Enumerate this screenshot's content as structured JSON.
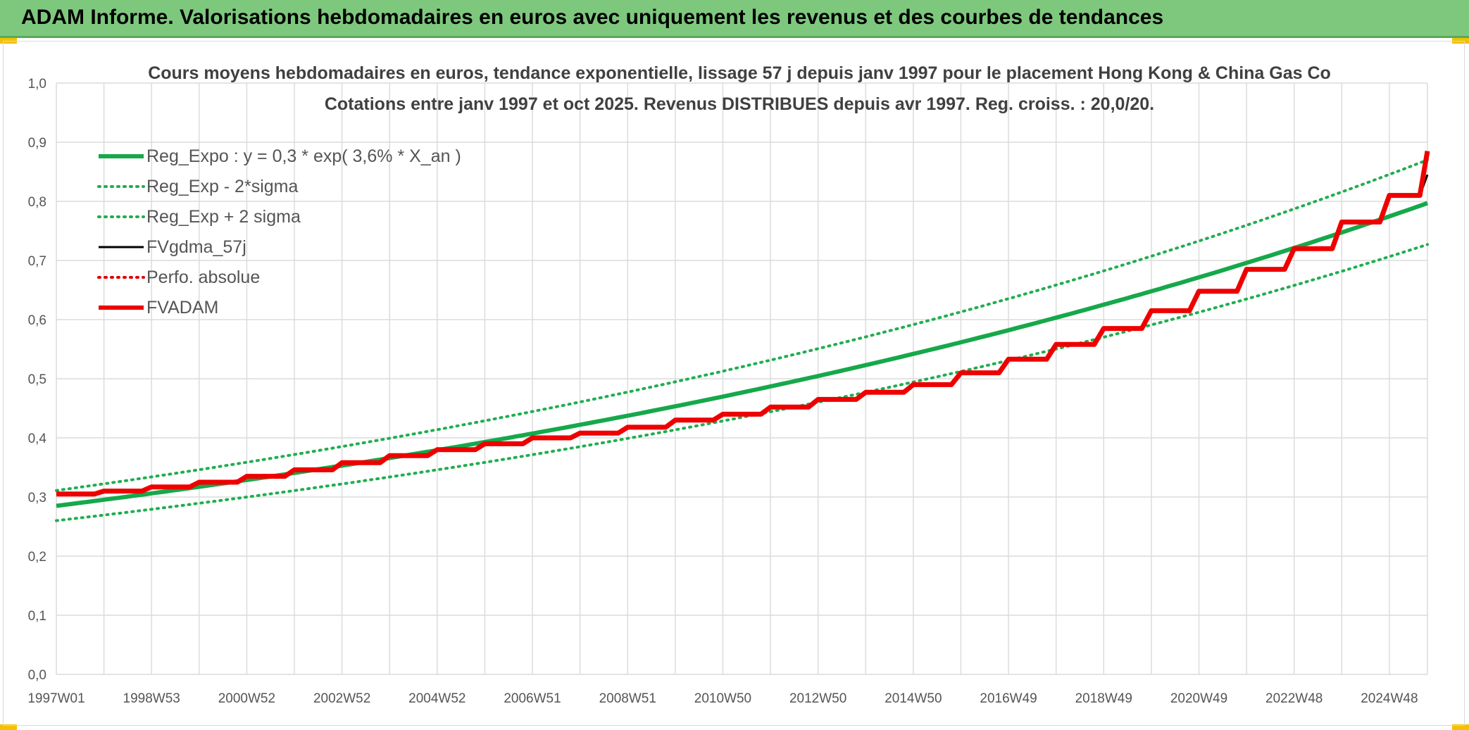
{
  "banner": {
    "title": "ADAM Informe. Valorisations hebdomadaires en euros avec uniquement les revenus et des courbes de tendances"
  },
  "colors": {
    "banner_bg": "#7ec87e",
    "accent": "#f2c200",
    "reg_green": "#16a84a",
    "band_green": "#1fae4f",
    "fv_black": "#000000",
    "perf_red": "#e00000",
    "adam_red": "#ee0000",
    "grid": "#dcdcdc"
  },
  "chart_data": {
    "type": "line",
    "title_line1": "Cours moyens hebdomadaires en euros, tendance exponentielle, lissage 57 j depuis janv 1997 pour le placement Hong Kong & China Gas Co",
    "title_line2": "Cotations entre janv 1997 et oct 2025. Revenus DISTRIBUES depuis avr 1997. Reg. croiss. : 20,0/20.",
    "xlabel": "",
    "ylabel": "",
    "ylim": [
      0,
      1.0
    ],
    "xlim": [
      1997.0,
      2025.8
    ],
    "y_ticks": [
      "0,0",
      "0,1",
      "0,2",
      "0,3",
      "0,4",
      "0,5",
      "0,6",
      "0,7",
      "0,8",
      "0,9",
      "1,0"
    ],
    "x_ticks": [
      {
        "label": "1997W01",
        "x": 1997.0
      },
      {
        "label": "1998W53",
        "x": 1999.0
      },
      {
        "label": "2000W52",
        "x": 2001.0
      },
      {
        "label": "2002W52",
        "x": 2003.0
      },
      {
        "label": "2004W52",
        "x": 2005.0
      },
      {
        "label": "2006W51",
        "x": 2007.0
      },
      {
        "label": "2008W51",
        "x": 2009.0
      },
      {
        "label": "2010W50",
        "x": 2011.0
      },
      {
        "label": "2012W50",
        "x": 2013.0
      },
      {
        "label": "2014W50",
        "x": 2015.0
      },
      {
        "label": "2016W49",
        "x": 2017.0
      },
      {
        "label": "2018W49",
        "x": 2019.0
      },
      {
        "label": "2020W49",
        "x": 2021.0
      },
      {
        "label": "2022W48",
        "x": 2023.0
      },
      {
        "label": "2024W48",
        "x": 2025.0
      }
    ],
    "grid": true,
    "legend_position": "top-left",
    "series": [
      {
        "name": "Reg_Expo : y = 0,3 * exp( 3,6% *  X_an )",
        "style": "solid-thick",
        "color": "#16a84a",
        "x": [
          1997.0,
          2000.0,
          2003.0,
          2006.0,
          2009.0,
          2012.0,
          2015.0,
          2018.0,
          2021.0,
          2024.0,
          2025.8
        ],
        "y": [
          0.285,
          0.317,
          0.353,
          0.393,
          0.437,
          0.486,
          0.541,
          0.603,
          0.671,
          0.746,
          0.797
        ]
      },
      {
        "name": "Reg_Exp - 2*sigma",
        "style": "dotted",
        "color": "#1fae4f",
        "x": [
          1997.0,
          2000.0,
          2003.0,
          2006.0,
          2009.0,
          2012.0,
          2015.0,
          2018.0,
          2021.0,
          2024.0,
          2025.8
        ],
        "y": [
          0.26,
          0.289,
          0.322,
          0.358,
          0.399,
          0.444,
          0.494,
          0.55,
          0.612,
          0.681,
          0.727
        ]
      },
      {
        "name": "Reg_Exp + 2 sigma",
        "style": "dotted",
        "color": "#1fae4f",
        "x": [
          1997.0,
          2000.0,
          2003.0,
          2006.0,
          2009.0,
          2012.0,
          2015.0,
          2018.0,
          2021.0,
          2024.0,
          2025.8
        ],
        "y": [
          0.311,
          0.346,
          0.385,
          0.429,
          0.477,
          0.531,
          0.591,
          0.658,
          0.732,
          0.815,
          0.87
        ]
      },
      {
        "name": "FVgdma_57j",
        "style": "solid",
        "color": "#000000",
        "x": [
          1997.0,
          1998.0,
          1999.0,
          2000.0,
          2001.0,
          2002.0,
          2003.0,
          2004.0,
          2005.0,
          2006.0,
          2007.0,
          2008.0,
          2009.0,
          2010.0,
          2011.0,
          2012.0,
          2013.0,
          2014.0,
          2015.0,
          2016.0,
          2017.0,
          2018.0,
          2019.0,
          2020.0,
          2021.0,
          2022.0,
          2023.0,
          2024.0,
          2025.0,
          2025.8
        ],
        "y": [
          0.305,
          0.31,
          0.317,
          0.325,
          0.335,
          0.346,
          0.358,
          0.37,
          0.38,
          0.39,
          0.4,
          0.408,
          0.418,
          0.43,
          0.44,
          0.452,
          0.465,
          0.477,
          0.49,
          0.51,
          0.533,
          0.558,
          0.585,
          0.615,
          0.648,
          0.685,
          0.72,
          0.765,
          0.81,
          0.845
        ]
      },
      {
        "name": "Perfo. absolue",
        "style": "dotted",
        "color": "#e00000",
        "x": [
          1997.0,
          2001.0,
          2005.0,
          2009.0,
          2013.0,
          2017.0,
          2021.0,
          2025.8
        ],
        "y": [
          0.305,
          0.335,
          0.38,
          0.418,
          0.465,
          0.533,
          0.648,
          0.885
        ]
      },
      {
        "name": "FVADAM",
        "style": "step-thick",
        "color": "#ee0000",
        "x": [
          1997.0,
          1998.0,
          1999.0,
          2000.0,
          2001.0,
          2002.0,
          2003.0,
          2004.0,
          2005.0,
          2006.0,
          2007.0,
          2008.0,
          2009.0,
          2010.0,
          2011.0,
          2012.0,
          2013.0,
          2014.0,
          2015.0,
          2016.0,
          2017.0,
          2018.0,
          2019.0,
          2020.0,
          2021.0,
          2022.0,
          2023.0,
          2024.0,
          2025.0,
          2025.8
        ],
        "y": [
          0.305,
          0.31,
          0.317,
          0.325,
          0.335,
          0.346,
          0.358,
          0.37,
          0.38,
          0.39,
          0.4,
          0.408,
          0.418,
          0.43,
          0.44,
          0.452,
          0.465,
          0.477,
          0.49,
          0.51,
          0.533,
          0.558,
          0.585,
          0.615,
          0.648,
          0.685,
          0.72,
          0.765,
          0.81,
          0.885
        ]
      }
    ]
  }
}
